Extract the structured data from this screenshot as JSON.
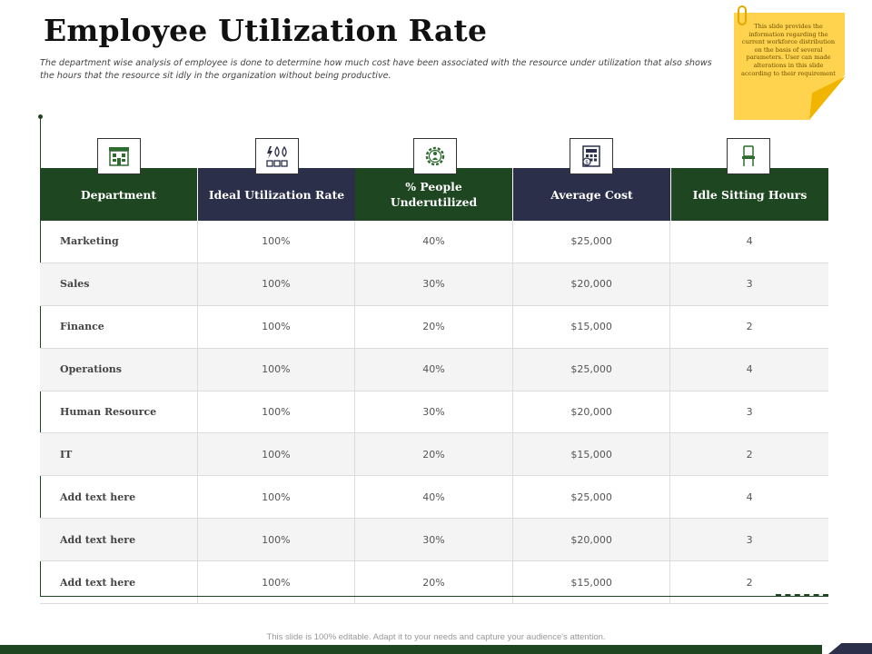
{
  "title": "Employee Utilization Rate",
  "subtitle": "The department wise analysis of employee is done to determine how much cost have been associated with the resource under utilization that also shows the hours that the resource sit idly in the organization without being productive.",
  "note": "This slide provides the information regarding the current workforce distribution on the basis of several parameters. User can made alterations in this slide according to their requirement",
  "columns": [
    {
      "label": "Department",
      "icon": "building-icon",
      "color": "#1e4620"
    },
    {
      "label": "Ideal Utilization Rate",
      "icon": "utilities-icon",
      "color": "#2b2f4a"
    },
    {
      "label": "% People Underutilized",
      "icon": "gear-person-icon",
      "color": "#1e4620"
    },
    {
      "label": "Average Cost",
      "icon": "calculator-icon",
      "color": "#2b2f4a"
    },
    {
      "label": "Idle Sitting Hours",
      "icon": "chair-icon",
      "color": "#1e4620"
    }
  ],
  "rows": [
    [
      "Marketing",
      "100%",
      "40%",
      "$25,000",
      "4"
    ],
    [
      "Sales",
      "100%",
      "30%",
      "$20,000",
      "3"
    ],
    [
      "Finance",
      "100%",
      "20%",
      "$15,000",
      "2"
    ],
    [
      "Operations",
      "100%",
      "40%",
      "$25,000",
      "4"
    ],
    [
      "Human Resource",
      "100%",
      "30%",
      "$20,000",
      "3"
    ],
    [
      "IT",
      "100%",
      "20%",
      "$15,000",
      "2"
    ],
    [
      "Add text here",
      "100%",
      "40%",
      "$25,000",
      "4"
    ],
    [
      "Add text here",
      "100%",
      "30%",
      "$20,000",
      "3"
    ],
    [
      "Add text here",
      "100%",
      "20%",
      "$15,000",
      "2"
    ]
  ],
  "footer": "This slide is 100% editable. Adapt it to your needs and capture your audience's attention."
}
